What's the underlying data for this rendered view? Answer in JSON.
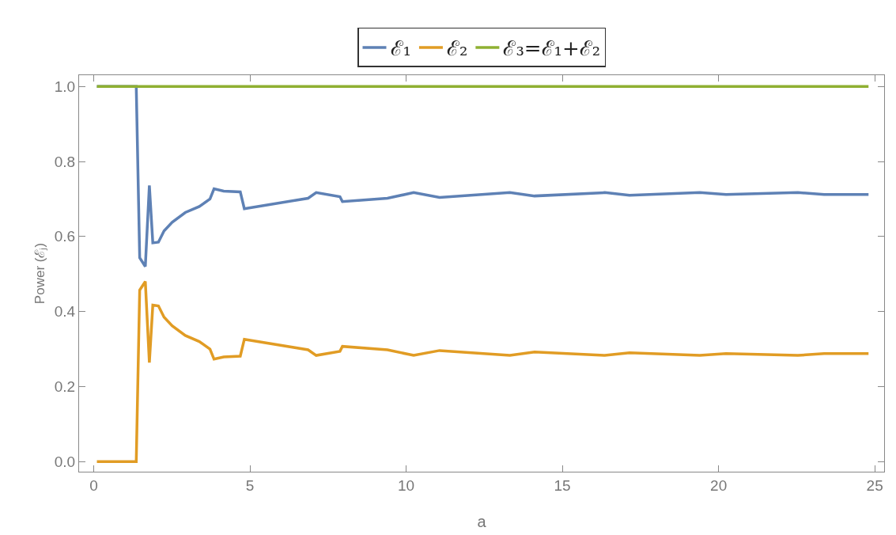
{
  "chart_data": {
    "type": "line",
    "xlabel": "a",
    "ylabel": "Power (ℰⱼ)",
    "x": [
      0.1,
      1.36,
      1.47,
      1.65,
      1.78,
      1.89,
      2.07,
      2.25,
      2.51,
      2.93,
      3.38,
      3.72,
      3.85,
      4.16,
      4.69,
      4.82,
      6.86,
      7.12,
      7.88,
      7.96,
      9.4,
      10.24,
      11.07,
      13.32,
      14.11,
      16.36,
      17.15,
      19.4,
      20.24,
      22.54,
      23.38,
      24.8
    ],
    "series": [
      {
        "name": "ℰ₁",
        "color": "#5e81b5",
        "values": [
          1.0,
          1.0,
          0.543,
          0.52,
          0.736,
          0.583,
          0.585,
          0.615,
          0.638,
          0.664,
          0.68,
          0.7,
          0.727,
          0.721,
          0.719,
          0.674,
          0.702,
          0.717,
          0.706,
          0.693,
          0.702,
          0.717,
          0.704,
          0.717,
          0.708,
          0.717,
          0.71,
          0.717,
          0.712,
          0.717,
          0.712,
          0.712
        ]
      },
      {
        "name": "ℰ₂",
        "color": "#e19c24",
        "values": [
          0,
          0,
          0.457,
          0.48,
          0.264,
          0.417,
          0.415,
          0.385,
          0.362,
          0.336,
          0.32,
          0.3,
          0.273,
          0.279,
          0.281,
          0.326,
          0.298,
          0.283,
          0.294,
          0.307,
          0.298,
          0.283,
          0.296,
          0.283,
          0.292,
          0.283,
          0.29,
          0.283,
          0.288,
          0.283,
          0.288,
          0.288
        ]
      },
      {
        "name": "ℰ₃=ℰ₁+ℰ₂",
        "color": "#8fb032",
        "x": [
          0.1,
          24.8
        ],
        "values": [
          1.0,
          1.0
        ]
      }
    ],
    "xlim": [
      -0.47,
      25.3
    ],
    "xticks": [
      0,
      5,
      10,
      15,
      20,
      25
    ],
    "ylim": [
      -0.027,
      1.03
    ],
    "yticks": [
      {
        "value": 0,
        "label": "0.0"
      },
      {
        "value": 0.2,
        "label": "0.2"
      },
      {
        "value": 0.4,
        "label": "0.4"
      },
      {
        "value": 0.6,
        "label": "0.6"
      },
      {
        "value": 0.8,
        "label": "0.8"
      },
      {
        "value": 1,
        "label": "1.0"
      }
    ],
    "legend": "top",
    "grid": false,
    "marker": "none",
    "line_style": "solid"
  }
}
